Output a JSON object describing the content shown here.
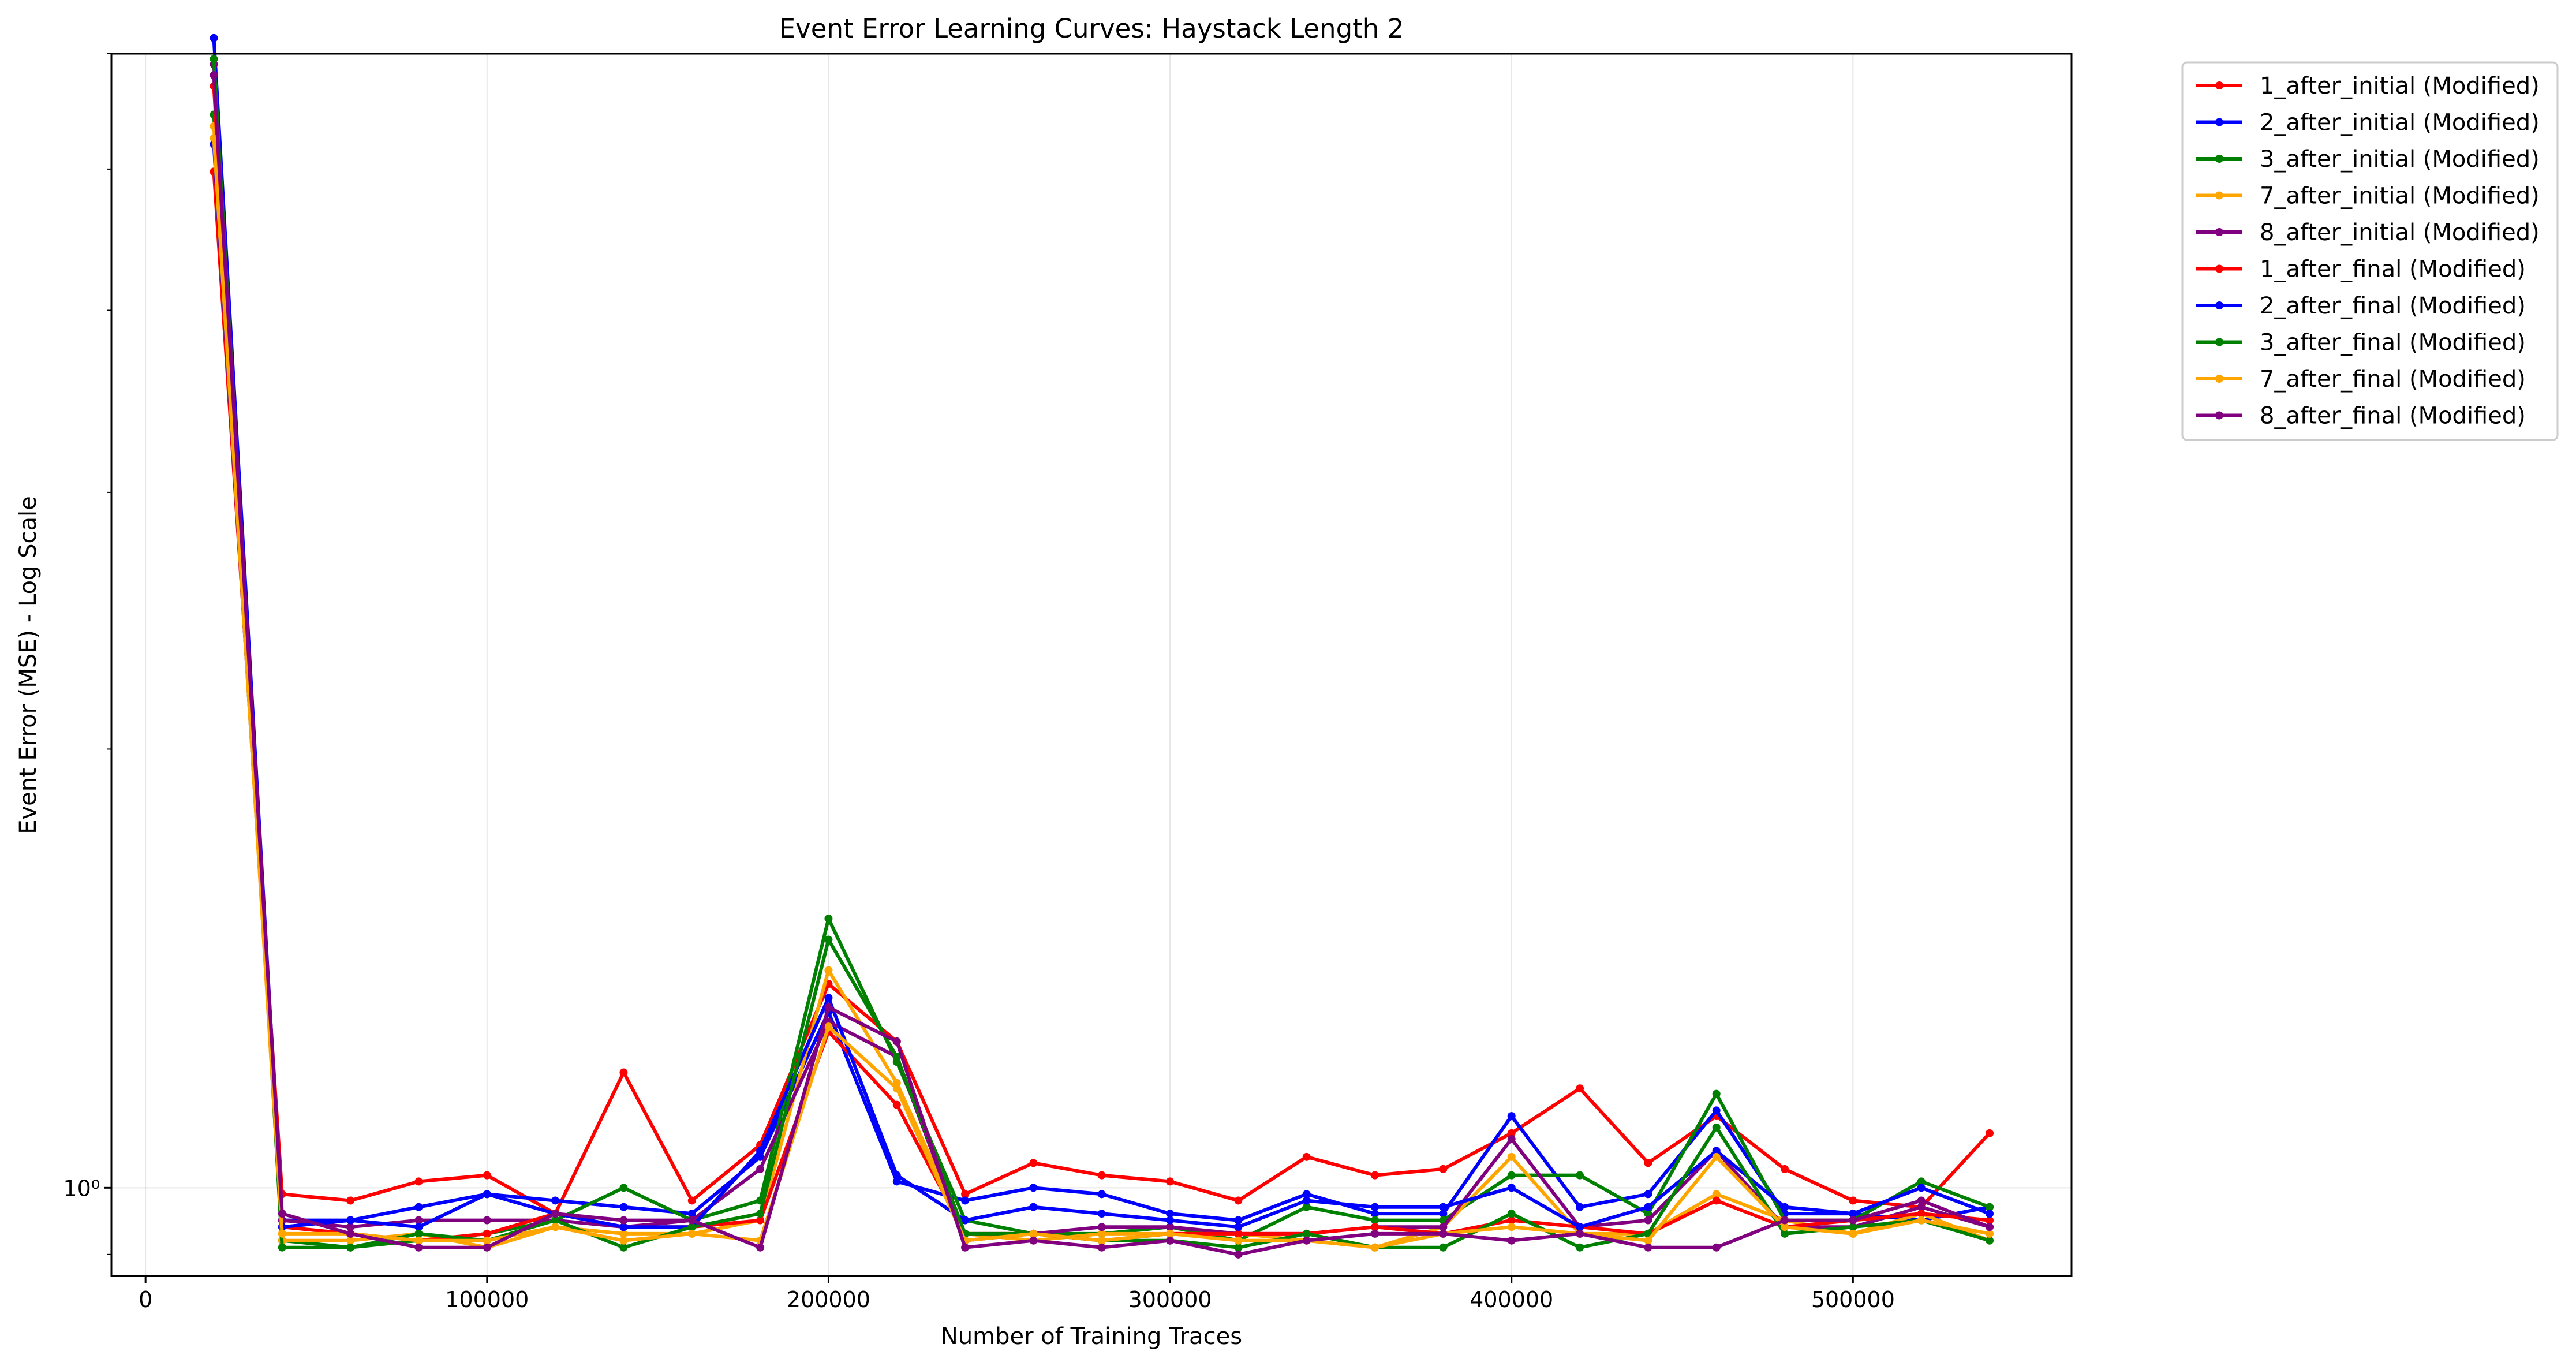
{
  "chart_data": {
    "type": "line",
    "title": "Event Error Learning Curves: Haystack Length 2",
    "xlabel": "Number of Training Traces",
    "ylabel": "Event Error (MSE) - Log Scale",
    "x_ticks": [
      0,
      100000,
      200000,
      300000,
      400000,
      500000
    ],
    "y_tick_labels": [
      "10⁰"
    ],
    "y_scale": "log",
    "xlim": [
      -10000,
      564000
    ],
    "ylim": [
      0.87,
      6.0
    ],
    "grid": true,
    "legend_position": "outside-top-right",
    "x": [
      20000,
      40000,
      60000,
      80000,
      100000,
      120000,
      140000,
      160000,
      180000,
      200000,
      220000,
      240000,
      260000,
      280000,
      300000,
      320000,
      340000,
      360000,
      380000,
      400000,
      420000,
      440000,
      460000,
      480000,
      500000,
      520000,
      540000
    ],
    "series": [
      {
        "name": "1_after_initial (Modified)",
        "color": "#ff0000",
        "values": [
          4.98,
          0.99,
          0.98,
          1.01,
          1.02,
          0.96,
          1.2,
          0.98,
          1.07,
          1.38,
          1.26,
          0.99,
          1.04,
          1.02,
          1.01,
          0.98,
          1.05,
          1.02,
          1.03,
          1.09,
          1.17,
          1.04,
          1.12,
          1.03,
          0.98,
          0.97,
          1.09
        ]
      },
      {
        "name": "2_after_initial (Modified)",
        "color": "#0000ff",
        "values": [
          6.15,
          0.95,
          0.95,
          0.97,
          0.99,
          0.98,
          0.97,
          0.96,
          1.05,
          1.32,
          1.01,
          0.98,
          1.0,
          0.99,
          0.96,
          0.95,
          0.99,
          0.96,
          0.96,
          1.12,
          0.97,
          0.99,
          1.13,
          0.96,
          0.96,
          0.95,
          0.97
        ]
      },
      {
        "name": "3_after_initial (Modified)",
        "color": "#008000",
        "values": [
          5.45,
          0.92,
          0.91,
          0.92,
          0.93,
          0.95,
          1.0,
          0.95,
          0.98,
          1.53,
          1.22,
          0.95,
          0.93,
          0.93,
          0.94,
          0.92,
          0.97,
          0.95,
          0.95,
          1.02,
          1.02,
          0.96,
          1.16,
          0.95,
          0.95,
          1.01,
          0.97
        ]
      },
      {
        "name": "7_after_initial (Modified)",
        "color": "#ffa500",
        "values": [
          5.35,
          0.92,
          0.92,
          0.93,
          0.91,
          0.94,
          0.93,
          0.93,
          0.95,
          1.41,
          1.18,
          0.93,
          0.92,
          0.93,
          0.93,
          0.93,
          0.92,
          0.91,
          0.94,
          1.05,
          0.93,
          0.93,
          0.99,
          0.95,
          0.93,
          0.96,
          0.92
        ]
      },
      {
        "name": "8_after_initial (Modified)",
        "color": "#800080",
        "values": [
          5.9,
          0.95,
          0.94,
          0.95,
          0.95,
          0.95,
          0.94,
          0.95,
          1.03,
          1.3,
          1.23,
          0.92,
          0.93,
          0.94,
          0.94,
          0.93,
          0.93,
          0.94,
          0.94,
          1.08,
          0.94,
          0.95,
          1.06,
          0.94,
          0.94,
          0.97,
          0.94
        ]
      },
      {
        "name": "1_after_final (Modified)",
        "color": "#ff0000",
        "values": [
          5.7,
          0.94,
          0.93,
          0.92,
          0.93,
          0.96,
          0.94,
          0.94,
          0.95,
          1.28,
          1.14,
          0.93,
          0.93,
          0.92,
          0.93,
          0.93,
          0.93,
          0.94,
          0.93,
          0.95,
          0.94,
          0.93,
          0.98,
          0.94,
          0.95,
          0.96,
          0.95
        ]
      },
      {
        "name": "2_after_final (Modified)",
        "color": "#0000ff",
        "values": [
          5.2,
          0.94,
          0.95,
          0.94,
          0.99,
          0.96,
          0.94,
          0.94,
          1.06,
          1.35,
          1.02,
          0.95,
          0.97,
          0.96,
          0.95,
          0.94,
          0.98,
          0.97,
          0.97,
          1.0,
          0.94,
          0.97,
          1.06,
          0.97,
          0.96,
          1.0,
          0.96
        ]
      },
      {
        "name": "3_after_final (Modified)",
        "color": "#008000",
        "values": [
          5.95,
          0.91,
          0.91,
          0.93,
          0.92,
          0.95,
          0.91,
          0.94,
          0.96,
          1.48,
          1.23,
          0.93,
          0.93,
          0.92,
          0.92,
          0.91,
          0.93,
          0.91,
          0.91,
          0.96,
          0.91,
          0.93,
          1.1,
          0.93,
          0.94,
          0.95,
          0.92
        ]
      },
      {
        "name": "7_after_final (Modified)",
        "color": "#ffa500",
        "values": [
          5.25,
          0.93,
          0.93,
          0.92,
          0.92,
          0.94,
          0.92,
          0.93,
          0.92,
          1.29,
          1.17,
          0.92,
          0.93,
          0.92,
          0.93,
          0.92,
          0.92,
          0.91,
          0.93,
          0.94,
          0.93,
          0.92,
          1.05,
          0.94,
          0.93,
          0.95,
          0.93
        ]
      },
      {
        "name": "8_after_final (Modified)",
        "color": "#800080",
        "values": [
          5.8,
          0.96,
          0.93,
          0.91,
          0.91,
          0.96,
          0.95,
          0.95,
          0.91,
          1.33,
          1.26,
          0.91,
          0.92,
          0.91,
          0.92,
          0.9,
          0.92,
          0.93,
          0.93,
          0.92,
          0.93,
          0.91,
          0.91,
          0.95,
          0.95,
          0.98,
          0.94
        ]
      }
    ]
  }
}
